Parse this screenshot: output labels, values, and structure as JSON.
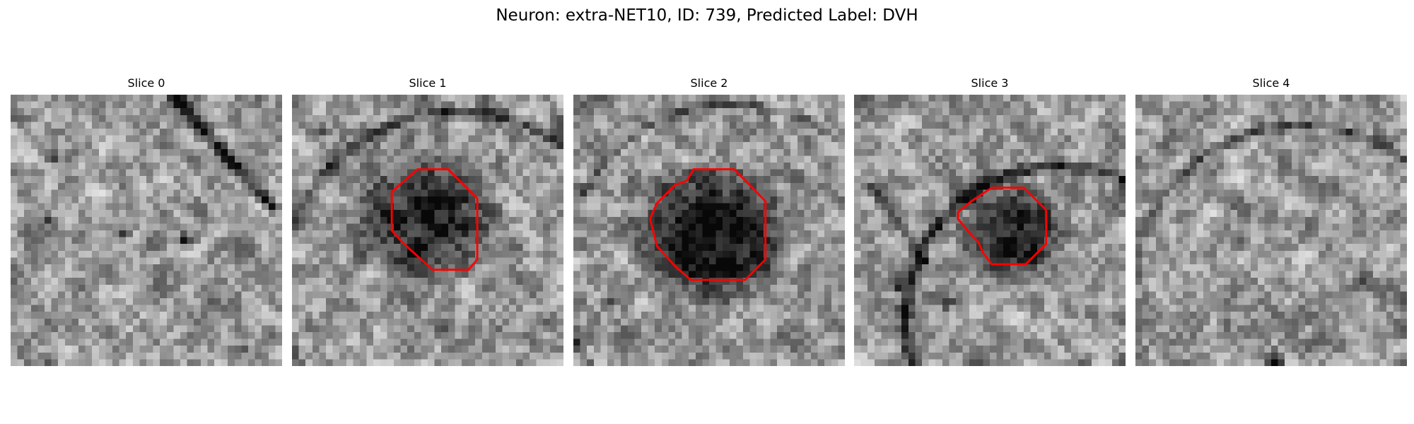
{
  "figure": {
    "title": "Neuron: extra-NET10, ID: 739, Predicted Label: DVH",
    "contour_color": "#ff0000",
    "panels": [
      {
        "title": "Slice 0",
        "has_contour": false,
        "seed": 11,
        "dark_blob": null,
        "lines": [
          {
            "kind": "diag",
            "from": [
              24,
              0
            ],
            "to": [
              38,
              16
            ],
            "w": 1.4,
            "d": 0.55
          }
        ],
        "spots": [
          [
            6,
            9,
            0.5
          ],
          [
            16,
            20,
            0.45
          ],
          [
            25,
            21,
            0.5
          ],
          [
            5,
            18,
            0.3
          ],
          [
            34,
            37,
            0.45
          ]
        ]
      },
      {
        "title": "Slice 1",
        "has_contour": true,
        "seed": 23,
        "dark_blob": [
          19,
          18,
          7.5,
          6.5,
          0.5
        ],
        "lines": [
          {
            "kind": "arc",
            "cx": 24,
            "cy": 28,
            "r": 26,
            "w": 1.2,
            "d": 0.35
          }
        ],
        "spots": [
          [
            4,
            5,
            0.25
          ],
          [
            30,
            10,
            0.25
          ]
        ],
        "contour": [
          [
            18.5,
            11
          ],
          [
            23,
            11
          ],
          [
            27.3,
            15.3
          ],
          [
            27.3,
            24.3
          ],
          [
            26,
            25.8
          ],
          [
            20.7,
            25.8
          ],
          [
            16.3,
            21.8
          ],
          [
            14.7,
            20
          ],
          [
            14.7,
            14.3
          ]
        ]
      },
      {
        "title": "Slice 2",
        "has_contour": true,
        "seed": 37,
        "dark_blob": [
          20,
          20,
          8,
          7.2,
          0.6
        ],
        "lines": [
          {
            "kind": "arc",
            "cx": 23,
            "cy": 26,
            "r": 25,
            "w": 1.0,
            "d": 0.3
          }
        ],
        "spots": [
          [
            5,
            30,
            0.3
          ],
          [
            34,
            6,
            0.2
          ]
        ],
        "contour": [
          [
            17.7,
            11
          ],
          [
            23.7,
            11
          ],
          [
            28.3,
            15.7
          ],
          [
            28.3,
            24.3
          ],
          [
            25.3,
            27.3
          ],
          [
            17.3,
            27.3
          ],
          [
            15,
            25.3
          ],
          [
            12.3,
            22.3
          ],
          [
            11.3,
            18.3
          ],
          [
            12.3,
            16
          ],
          [
            15,
            13.3
          ],
          [
            16.7,
            12.7
          ]
        ]
      },
      {
        "title": "Slice 3",
        "has_contour": true,
        "seed": 53,
        "dark_blob": [
          23,
          20,
          5.5,
          5,
          0.5
        ],
        "lines": [
          {
            "kind": "arc",
            "cx": 30,
            "cy": 33,
            "r": 23,
            "w": 1.4,
            "d": 0.5
          },
          {
            "kind": "diag",
            "from": [
              2,
              13
            ],
            "to": [
              10,
              24
            ],
            "w": 1.0,
            "d": 0.4
          }
        ],
        "spots": [
          [
            6,
            28,
            0.5
          ],
          [
            13,
            30,
            0.5
          ]
        ],
        "contour": [
          [
            20.3,
            13.7
          ],
          [
            25,
            13.7
          ],
          [
            28.3,
            17
          ],
          [
            28.3,
            22
          ],
          [
            25.3,
            25
          ],
          [
            20.3,
            25
          ],
          [
            19,
            23.3
          ],
          [
            18.3,
            21.7
          ],
          [
            17.3,
            20.7
          ],
          [
            15.3,
            18.3
          ],
          [
            15.3,
            17.3
          ],
          [
            17.3,
            15.7
          ]
        ]
      },
      {
        "title": "Slice 4",
        "has_contour": false,
        "seed": 71,
        "dark_blob": null,
        "lines": [
          {
            "kind": "arc",
            "cx": 24,
            "cy": 29,
            "r": 25,
            "w": 1.0,
            "d": 0.3
          }
        ],
        "spots": [
          [
            20,
            39,
            0.6
          ],
          [
            13,
            33,
            0.35
          ],
          [
            33,
            26,
            0.3
          ]
        ]
      }
    ]
  }
}
